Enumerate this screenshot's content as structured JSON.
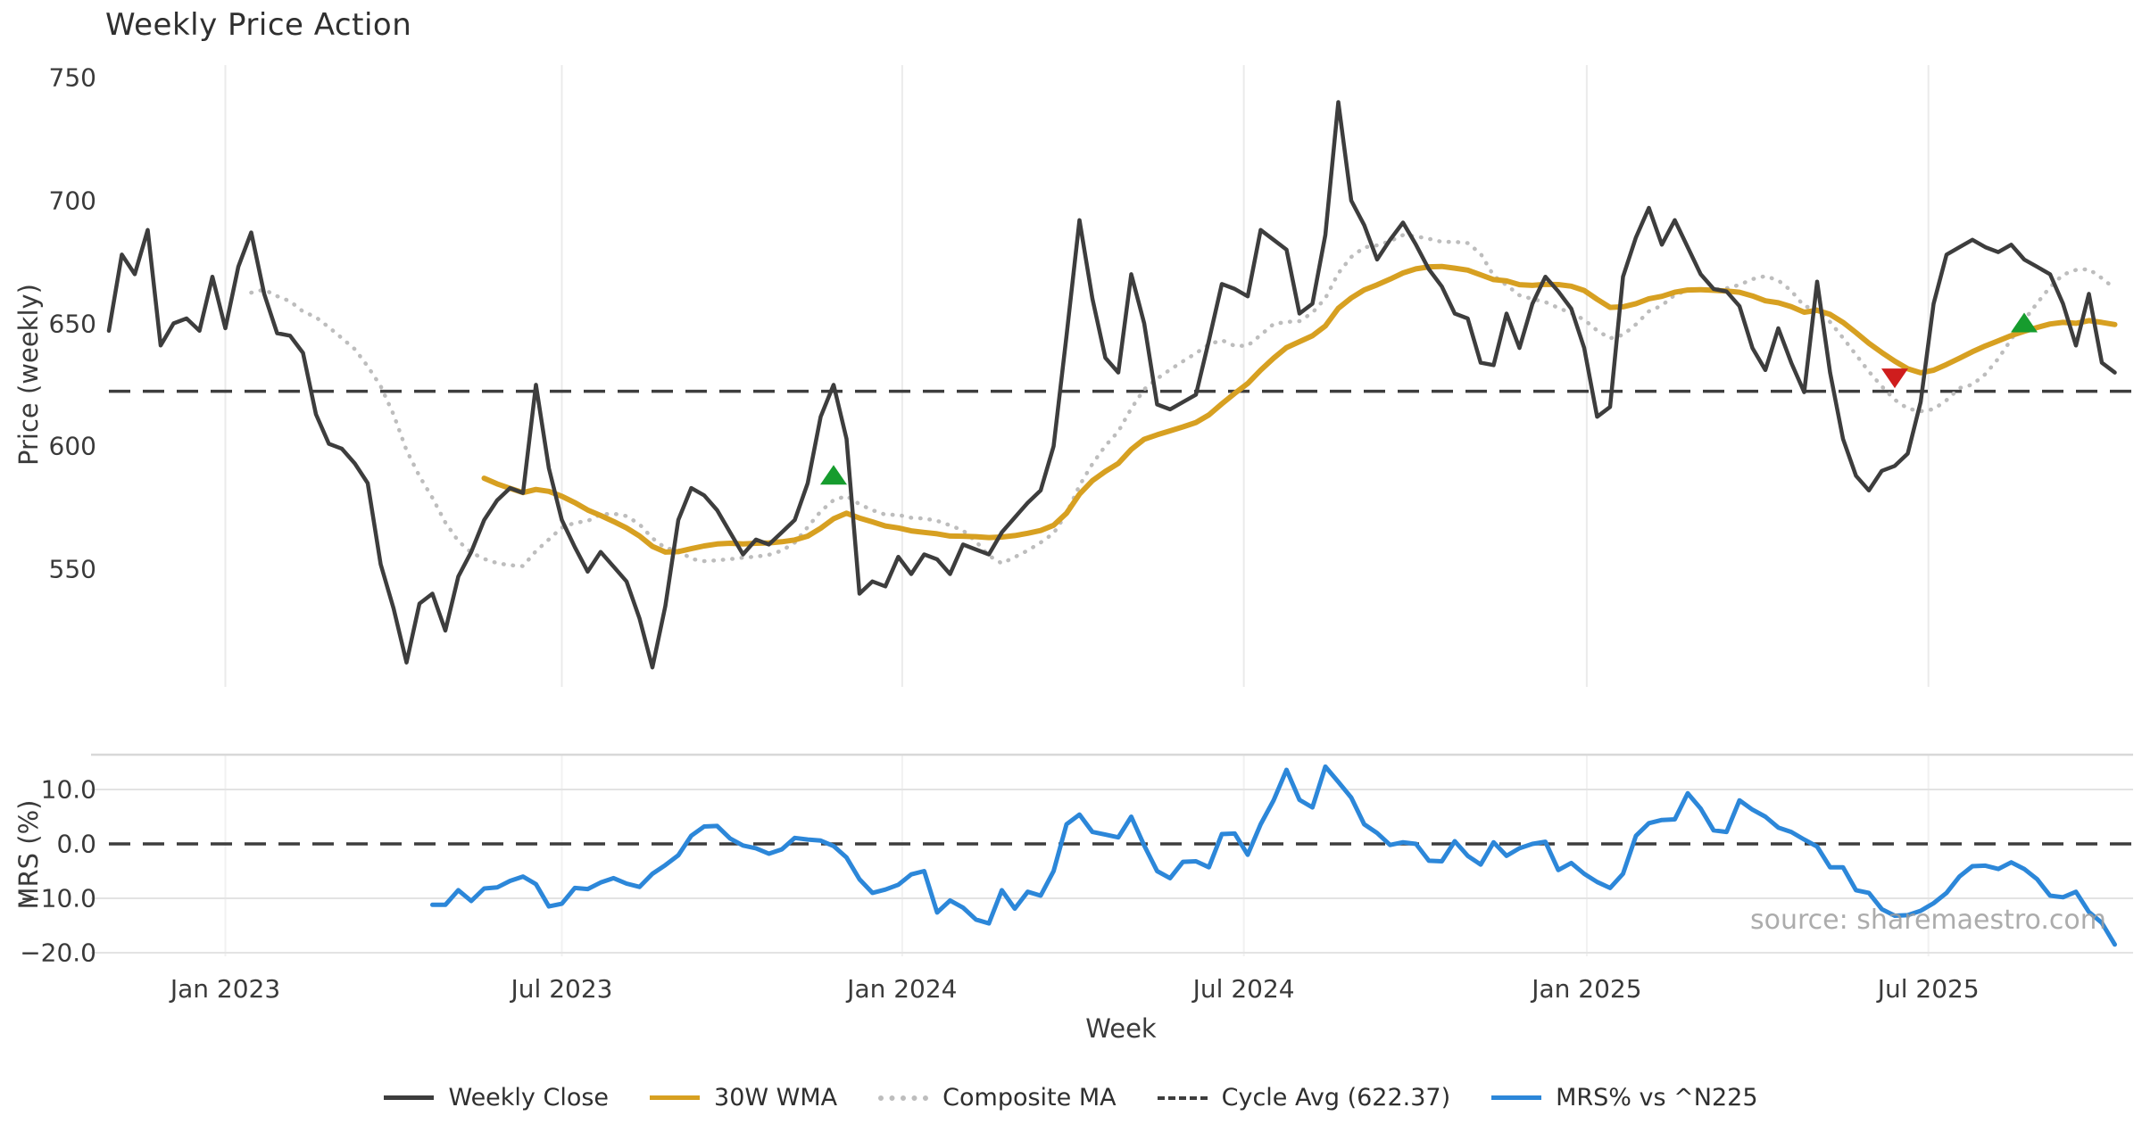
{
  "title": "Weekly Price Action",
  "watermark": "source: sharemaestro.com",
  "colors": {
    "price": "#3d3d3d",
    "wma": "#d7a021",
    "composite": "#bdbdbd",
    "cycle": "#3d3d3d",
    "mrs": "#2c87d9",
    "buy_marker": "#169c2e",
    "sell_marker": "#cf1d1d",
    "grid": "#ebebeb",
    "grid_h": "#e3e3e3",
    "panel_border": "#d8d8d8",
    "text": "#3a3a3a"
  },
  "legend": {
    "items": [
      {
        "label": "Weekly Close",
        "swatch": "price",
        "style": "solid"
      },
      {
        "label": "30W WMA",
        "swatch": "wma",
        "style": "solid"
      },
      {
        "label": "Composite MA",
        "swatch": "composite",
        "style": "dotted"
      },
      {
        "label": "Cycle Avg (622.37)",
        "swatch": "cycle",
        "style": "dashed"
      },
      {
        "label": "MRS% vs ^N225",
        "swatch": "mrs",
        "style": "solid"
      }
    ]
  },
  "axes": {
    "x_label": "Week",
    "x_ticks": [
      {
        "week": 9.0,
        "label": "Jan 2023"
      },
      {
        "week": 35.0,
        "label": "Jul 2023"
      },
      {
        "week": 61.3,
        "label": "Jan 2024"
      },
      {
        "week": 87.7,
        "label": "Jul 2024"
      },
      {
        "week": 114.2,
        "label": "Jan 2025"
      },
      {
        "week": 140.6,
        "label": "Jul 2025"
      }
    ],
    "top_y_label": "Price (weekly)",
    "top_y_ticks": [
      750,
      700,
      650,
      600,
      550
    ],
    "bottom_y_label": "MRS (%)",
    "bottom_y_ticks": [
      "10.0",
      "0.0",
      "-10.0",
      "-20.0"
    ]
  },
  "chart_data": [
    {
      "type": "line",
      "title": "Weekly Price Action",
      "xlabel": "Week",
      "ylabel": "Price (weekly)",
      "ylim": [
        502,
        755
      ],
      "x_tick_labels": [
        "Jan 2023",
        "Jul 2023",
        "Jan 2024",
        "Jul 2024",
        "Jan 2025",
        "Jul 2025"
      ],
      "grid": "vertical-only",
      "legend_position": "bottom-center",
      "cycle_avg": 622.37,
      "series": [
        {
          "name": "Weekly Close",
          "kind": "raw",
          "values": [
            647,
            678,
            670,
            688,
            641,
            650,
            652,
            647,
            669,
            648,
            673,
            687,
            662,
            646,
            645,
            638,
            613,
            601,
            599,
            593,
            585,
            552,
            534,
            512,
            536,
            540,
            525,
            547,
            557,
            570,
            578,
            583,
            581,
            625,
            591,
            570,
            559,
            549,
            557,
            551,
            545,
            530,
            510,
            535,
            570,
            583,
            580,
            574,
            565,
            556,
            562,
            560,
            565,
            570,
            585,
            612,
            625,
            603,
            540,
            545,
            543,
            555,
            548,
            556,
            554,
            548,
            560,
            558,
            556,
            565,
            571,
            577,
            582,
            600,
            645,
            692,
            660,
            636,
            630,
            670,
            650,
            617,
            615,
            618,
            621,
            643,
            666,
            664,
            661,
            688,
            684,
            680,
            654,
            658,
            686,
            740,
            700,
            690,
            676,
            684,
            691,
            682,
            672,
            665,
            654,
            652,
            634,
            633,
            654,
            640,
            658,
            669,
            663,
            656,
            640,
            612,
            616,
            669,
            685,
            697,
            682,
            692,
            681,
            670,
            664,
            663,
            657,
            640,
            631,
            648,
            634,
            622,
            667,
            630,
            603,
            588,
            582,
            590,
            592,
            597,
            618,
            658,
            678,
            681,
            684,
            681,
            679,
            682,
            676,
            673,
            670,
            658,
            641,
            662,
            634,
            630
          ]
        },
        {
          "name": "30W WMA",
          "kind": "derived",
          "method": "wma",
          "window": 30
        },
        {
          "name": "Composite MA",
          "kind": "derived",
          "method": "sma",
          "window": 12
        },
        {
          "name": "Cycle Avg (622.37)",
          "kind": "hline",
          "value": 622.37
        }
      ],
      "markers": [
        {
          "week": 56,
          "value": 588,
          "direction": "up",
          "color_key": "buy_marker"
        },
        {
          "week": 138,
          "value": 628,
          "direction": "down",
          "color_key": "sell_marker"
        },
        {
          "week": 148,
          "value": 650,
          "direction": "up",
          "color_key": "buy_marker"
        }
      ]
    },
    {
      "type": "line",
      "ylabel": "MRS (%)",
      "ylim": [
        -20.7,
        16.4
      ],
      "zero_line": 0,
      "grid": "both",
      "series": [
        {
          "name": "MRS% vs ^N225",
          "kind": "raw",
          "values": [
            null,
            null,
            null,
            null,
            null,
            null,
            null,
            null,
            null,
            null,
            null,
            null,
            null,
            null,
            null,
            null,
            null,
            null,
            null,
            null,
            null,
            null,
            null,
            null,
            null,
            -11.2,
            -11.2,
            -8.5,
            -10.5,
            -8.2,
            -8.0,
            -6.8,
            -6.0,
            -7.4,
            -11.5,
            -11.0,
            -8.1,
            -8.3,
            -7.1,
            -6.3,
            -7.3,
            -7.9,
            -5.5,
            -3.9,
            -2.1,
            1.5,
            3.2,
            3.3,
            1.0,
            -0.3,
            -0.8,
            -1.8,
            -1.0,
            1.1,
            0.8,
            0.6,
            -0.4,
            -2.5,
            -6.5,
            -9.0,
            -8.4,
            -7.5,
            -5.6,
            -5.0,
            -12.6,
            -10.4,
            -11.7,
            -13.9,
            -14.6,
            -8.5,
            -11.9,
            -8.8,
            -9.5,
            -5.0,
            3.6,
            5.4,
            2.2,
            1.7,
            1.2,
            5.0,
            -0.3,
            -5.0,
            -6.3,
            -3.3,
            -3.2,
            -4.3,
            1.8,
            1.9,
            -2.0,
            3.6,
            8.0,
            13.6,
            8.1,
            6.7,
            14.2,
            11.4,
            8.5,
            3.6,
            2.0,
            -0.2,
            0.3,
            0.0,
            -3.1,
            -3.2,
            0.5,
            -2.2,
            -3.8,
            0.3,
            -2.2,
            -0.8,
            0.0,
            0.4,
            -4.8,
            -3.5,
            -5.5,
            -7.0,
            -8.1,
            -5.5,
            1.5,
            3.8,
            4.4,
            4.5,
            9.3,
            6.5,
            2.5,
            2.2,
            8.0,
            6.3,
            5.0,
            3.0,
            2.2,
            0.8,
            -0.5,
            -4.3,
            -4.3,
            -8.5,
            -9.0,
            -12.0,
            -13.2,
            -13.1,
            -12.3,
            -10.9,
            -9.0,
            -6.0,
            -4.1,
            -4.0,
            -4.6,
            -3.4,
            -4.6,
            -6.5,
            -9.5,
            -9.8,
            -8.8,
            -12.5,
            -14.5,
            -18.5
          ]
        }
      ]
    }
  ]
}
